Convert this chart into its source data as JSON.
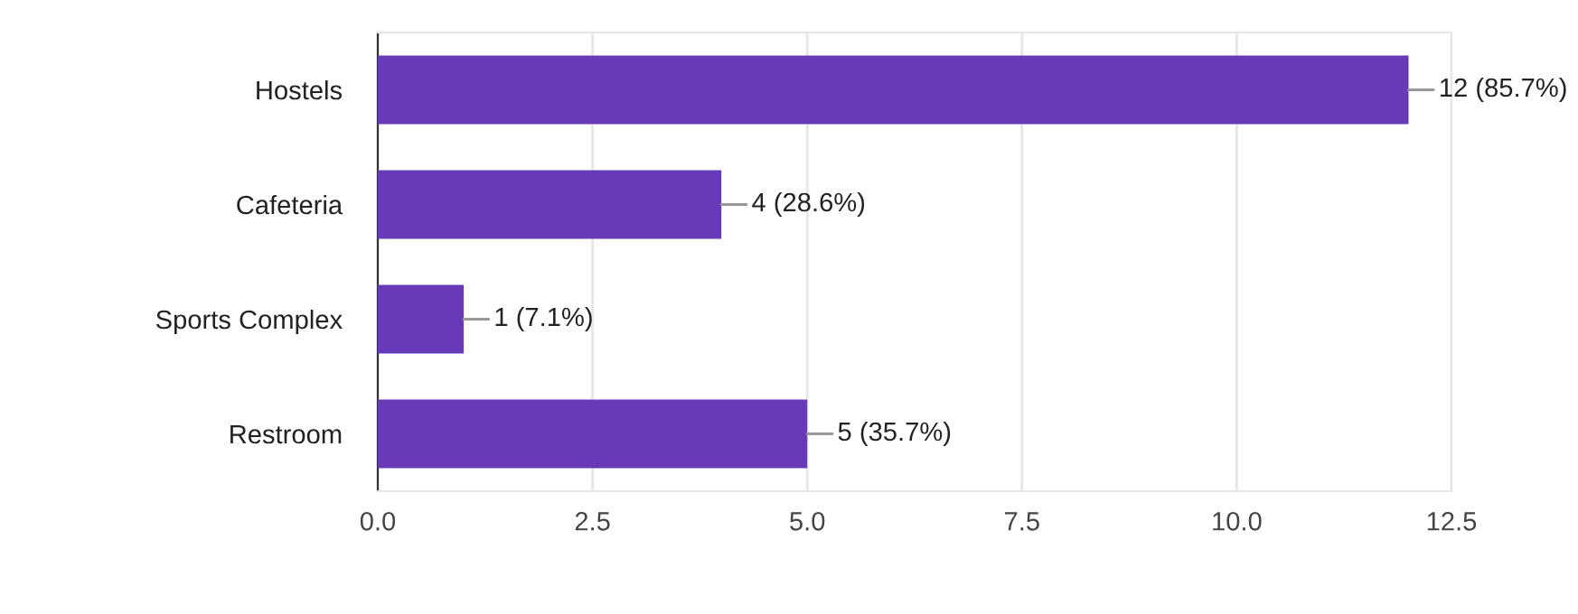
{
  "chart_data": {
    "type": "bar",
    "orientation": "horizontal",
    "categories": [
      "Hostels",
      "Cafeteria",
      "Sports Complex",
      "Restroom"
    ],
    "values": [
      12,
      4,
      1,
      5
    ],
    "color": "#673ab7",
    "value_labels": [
      "12 (85.7%)",
      "4 (28.6%)",
      "1 (7.1%)",
      "5 (35.7%)"
    ],
    "xlim": [
      0,
      12.5
    ],
    "xticks": [
      {
        "value": 0,
        "label": "0.0"
      },
      {
        "value": 2.5,
        "label": "2.5"
      },
      {
        "value": 5,
        "label": "5.0"
      },
      {
        "value": 7.5,
        "label": "7.5"
      },
      {
        "value": 10,
        "label": "10.0"
      },
      {
        "value": 12.5,
        "label": "12.5"
      }
    ],
    "grid": "x",
    "legend": false
  }
}
